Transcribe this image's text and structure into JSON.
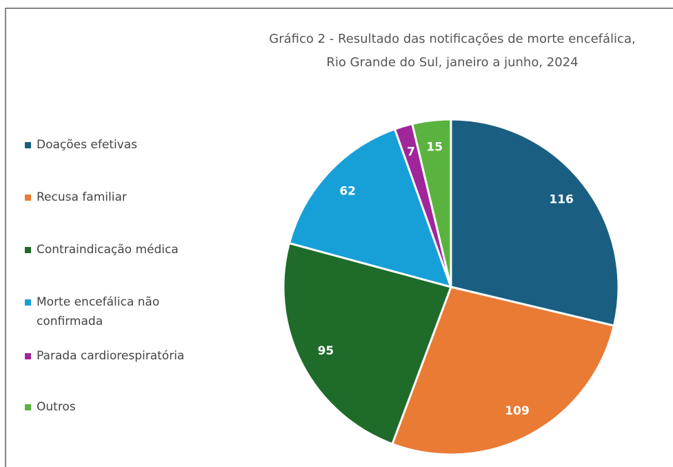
{
  "chart_data": {
    "type": "pie",
    "title": [
      "Gráfico 2 - Resultado das notificações de morte encefálica,",
      "Rio Grande do Sul, janeiro a junho, 2024"
    ],
    "categories": [
      "Doações efetivas",
      "Recusa familiar",
      "Contraindicação médica",
      "Morte encefálica não confirmada",
      "Parada cardiorespiratória",
      "Outros"
    ],
    "values": [
      116,
      109,
      95,
      62,
      7,
      15
    ],
    "colors": [
      "#1a5f82",
      "#e97b35",
      "#1e6b2a",
      "#17a0d8",
      "#a0269a",
      "#5bb33f"
    ],
    "legend": "left"
  }
}
